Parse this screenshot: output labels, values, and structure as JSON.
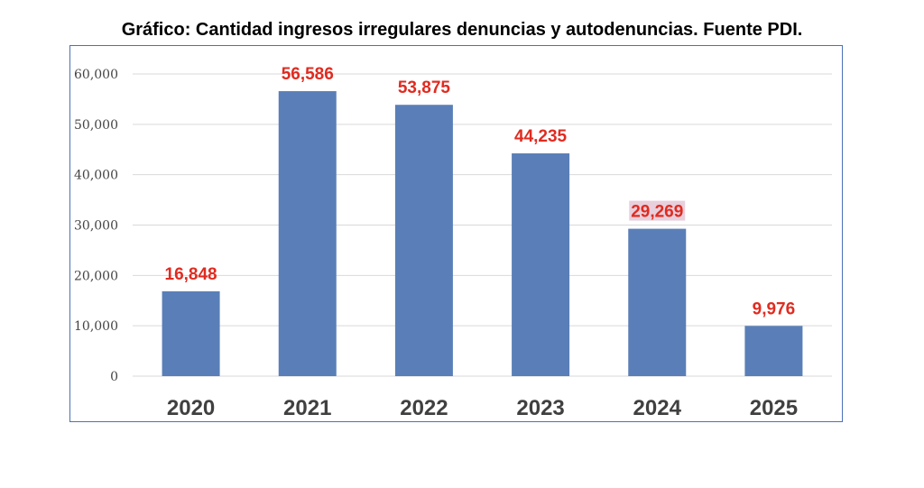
{
  "chart_data": {
    "type": "bar",
    "title": "Gráfico:  Cantidad ingresos irregulares denuncias y autodenuncias. Fuente PDI.",
    "categories": [
      "2020",
      "2021",
      "2022",
      "2023",
      "2024",
      "2025"
    ],
    "values": [
      16848,
      56586,
      53875,
      44235,
      29269,
      9976
    ],
    "data_labels": [
      "16,848",
      "56,586",
      "53,875",
      "44,235",
      "29,269",
      "9,976"
    ],
    "y_ticks": [
      "0",
      "10,000",
      "20,000",
      "30,000",
      "40,000",
      "50,000",
      "60,000"
    ],
    "ylim": [
      0,
      60000
    ],
    "xlabel": "",
    "ylabel": "",
    "grid": true,
    "legend": "none",
    "colors": {
      "bar": "#5a7fb8",
      "data_label": "#e02b20",
      "frame": "#4a72b8",
      "grid": "#d9d9d9",
      "highlight": "#e8cfdc"
    }
  }
}
